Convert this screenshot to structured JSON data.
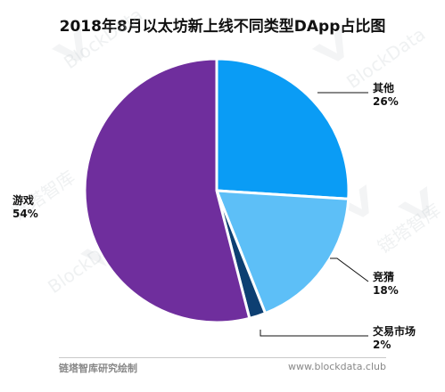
{
  "chart_data": {
    "type": "pie",
    "title": "2018年8月以太坊新上线不同类型DApp占比图",
    "slices": [
      {
        "label": "其他",
        "percent_label": "26%",
        "value": 26,
        "color": "#0a9cf5"
      },
      {
        "label": "竞猜",
        "percent_label": "18%",
        "value": 18,
        "color": "#5dbff7"
      },
      {
        "label": "交易市场",
        "percent_label": "2%",
        "value": 2,
        "color": "#0d3f72"
      },
      {
        "label": "游戏",
        "percent_label": "54%",
        "value": 54,
        "color": "#6f2e9d"
      }
    ],
    "legend": "none"
  },
  "footer": {
    "left_text": "链塔智库研究绘制",
    "right_text": "www.blockdata.club"
  },
  "watermark": {
    "text_cn": "链塔智库",
    "text_en": "BlockData"
  }
}
